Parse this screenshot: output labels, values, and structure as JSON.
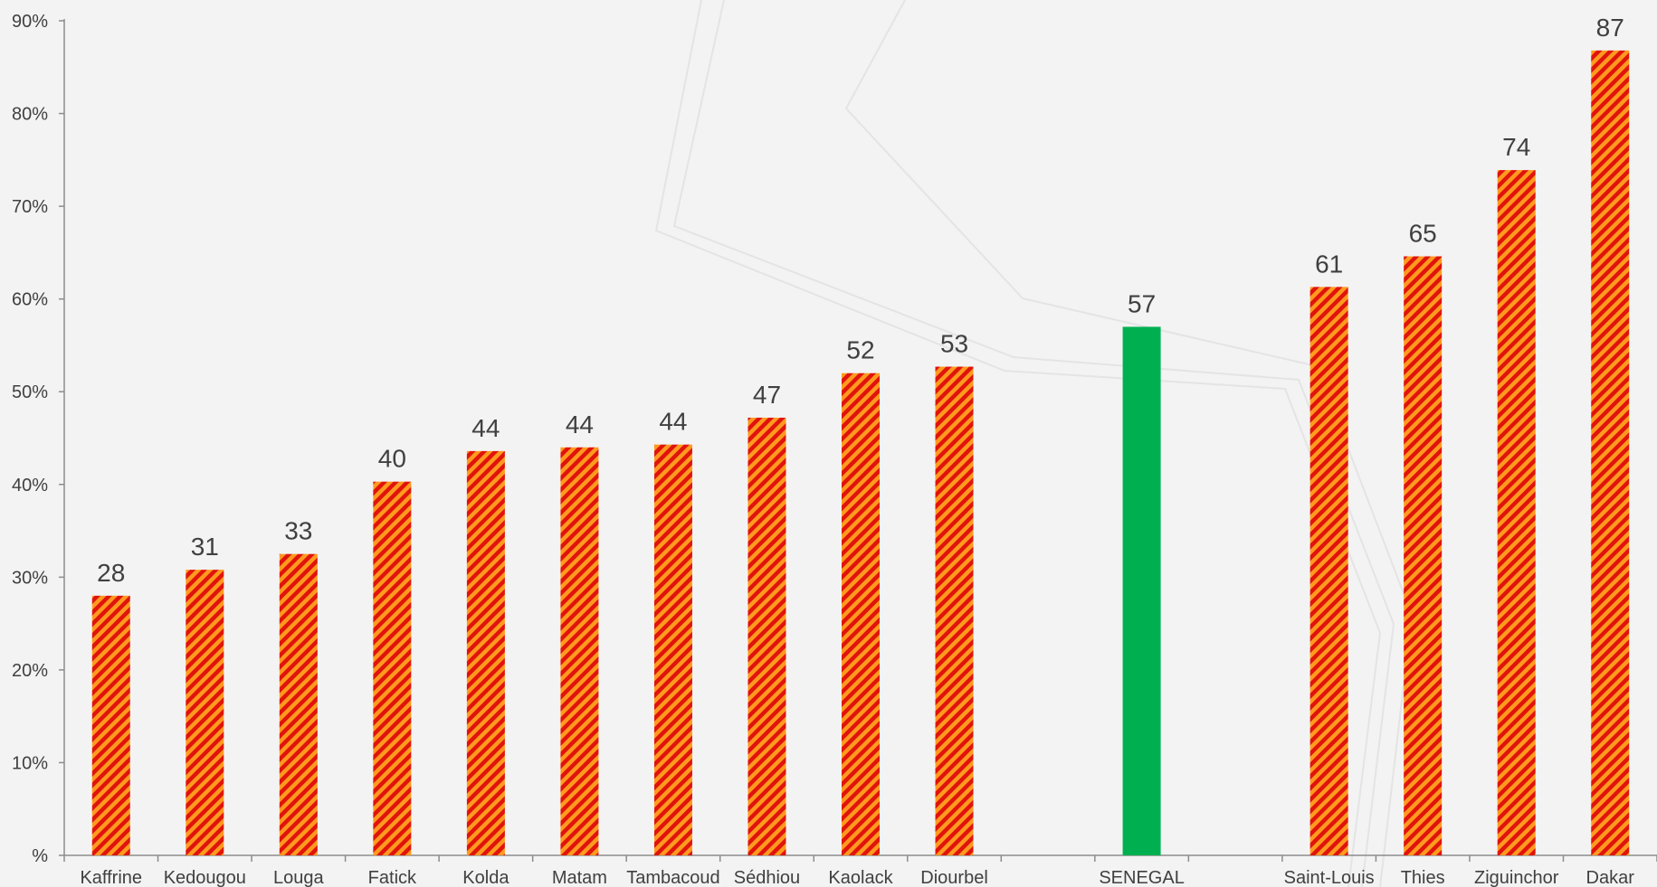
{
  "chart_data": {
    "type": "bar",
    "categories": [
      "Kaffrine",
      "Kedougou",
      "Louga",
      "Fatick",
      "Kolda",
      "Matam",
      "Tambacoud",
      "Sédhiou",
      "Kaolack",
      "Diourbel",
      "",
      "SENEGAL",
      "",
      "Saint-Louis",
      "Thies",
      "Ziguinchor",
      "Dakar"
    ],
    "values": [
      28.0,
      30.8,
      32.5,
      40.3,
      43.6,
      44.0,
      44.3,
      47.2,
      52.0,
      52.7,
      null,
      57.0,
      null,
      61.3,
      64.6,
      73.9,
      86.8
    ],
    "data_labels": [
      "28",
      "31",
      "33",
      "40",
      "44",
      "44",
      "44",
      "47",
      "52",
      "53",
      "",
      "57",
      "",
      "61",
      "65",
      "74",
      "87"
    ],
    "highlight": [
      false,
      false,
      false,
      false,
      false,
      false,
      false,
      false,
      false,
      false,
      false,
      true,
      false,
      false,
      false,
      false,
      false
    ],
    "y_ticks": [
      "%",
      "10%",
      "20%",
      "30%",
      "40%",
      "50%",
      "60%",
      "70%",
      "80%",
      "90%"
    ],
    "ylim": [
      0,
      90
    ],
    "grid": false,
    "title": "",
    "xlabel": "",
    "ylabel": "",
    "colors": {
      "bar_base": "#ff9a1f",
      "bar_stripe": "#e0140c",
      "highlight": "#00b050",
      "axis": "#8c8c8c",
      "text": "#404040"
    }
  }
}
